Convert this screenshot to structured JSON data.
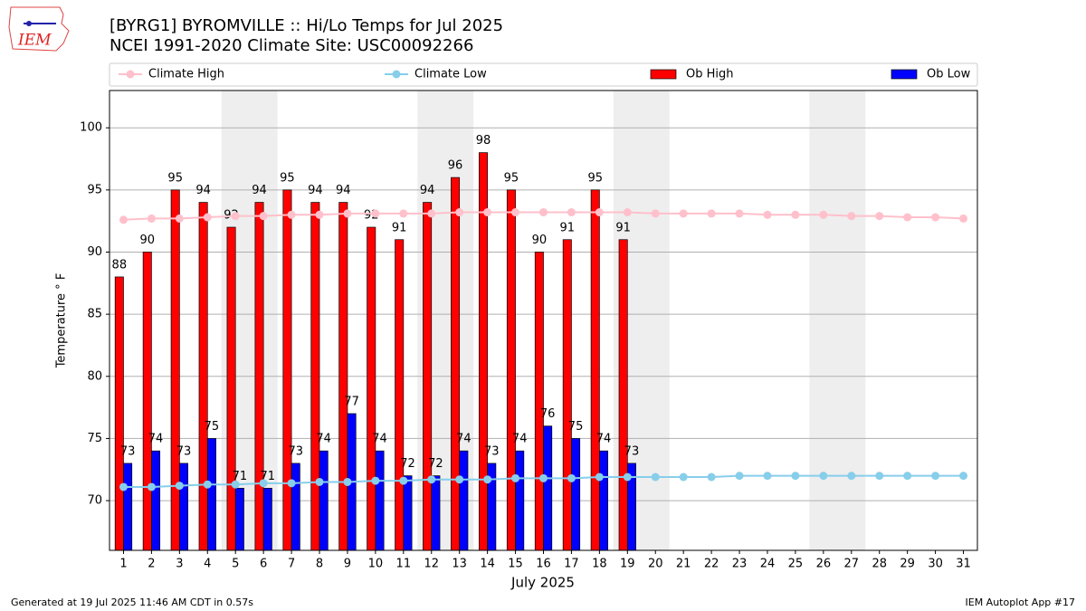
{
  "chart_data": {
    "type": "bar_line",
    "title": "[BYRG1] BYROMVILLE :: Hi/Lo Temps for Jul 2025",
    "subtitle": "NCEI 1991-2020 Climate Site: USC00092266",
    "ylabel": "Temperature ° F",
    "xlabel": "July 2025",
    "footer_left": "Generated at 19 Jul 2025 11:46 AM CDT in 0.57s",
    "footer_right": "IEM Autoplot App #17",
    "logo_text": "IEM",
    "x": [
      1,
      2,
      3,
      4,
      5,
      6,
      7,
      8,
      9,
      10,
      11,
      12,
      13,
      14,
      15,
      16,
      17,
      18,
      19,
      20,
      21,
      22,
      23,
      24,
      25,
      26,
      27,
      28,
      29,
      30,
      31
    ],
    "xlim": [
      0.5,
      31.5
    ],
    "xticks": [
      1,
      2,
      3,
      4,
      5,
      6,
      7,
      8,
      9,
      10,
      11,
      12,
      13,
      14,
      15,
      16,
      17,
      18,
      19,
      20,
      21,
      22,
      23,
      24,
      25,
      26,
      27,
      28,
      29,
      30,
      31
    ],
    "ylim": [
      66,
      103
    ],
    "yticks": [
      70,
      75,
      80,
      85,
      90,
      95,
      100
    ],
    "grid": true,
    "legend": "top",
    "shaded_ranges": [
      [
        4.5,
        6.5
      ],
      [
        11.5,
        13.5
      ],
      [
        18.5,
        20.5
      ],
      [
        25.5,
        27.5
      ]
    ],
    "shade_color": "#eeeeee",
    "series": [
      {
        "name": "Climate High",
        "kind": "line",
        "color": "#ffc0cb",
        "values": [
          92.6,
          92.7,
          92.7,
          92.8,
          92.9,
          92.9,
          93.0,
          93.0,
          93.1,
          93.1,
          93.1,
          93.1,
          93.2,
          93.2,
          93.2,
          93.2,
          93.2,
          93.2,
          93.2,
          93.1,
          93.1,
          93.1,
          93.1,
          93.0,
          93.0,
          93.0,
          92.9,
          92.9,
          92.8,
          92.8,
          92.7
        ]
      },
      {
        "name": "Climate Low",
        "kind": "line",
        "color": "#87ceeb",
        "values": [
          71.1,
          71.1,
          71.2,
          71.3,
          71.3,
          71.4,
          71.4,
          71.5,
          71.5,
          71.6,
          71.6,
          71.7,
          71.7,
          71.7,
          71.8,
          71.8,
          71.8,
          71.9,
          71.9,
          71.9,
          71.9,
          71.9,
          72.0,
          72.0,
          72.0,
          72.0,
          72.0,
          72.0,
          72.0,
          72.0,
          72.0
        ]
      },
      {
        "name": "Ob High",
        "kind": "bar",
        "color": "#ff0000",
        "values": [
          88,
          90,
          95,
          94,
          92,
          94,
          95,
          94,
          94,
          92,
          91,
          94,
          96,
          98,
          95,
          90,
          91,
          95,
          91,
          null,
          null,
          null,
          null,
          null,
          null,
          null,
          null,
          null,
          null,
          null,
          null
        ]
      },
      {
        "name": "Ob Low",
        "kind": "bar",
        "color": "#0000ff",
        "values": [
          73,
          74,
          73,
          75,
          71,
          71,
          73,
          74,
          77,
          74,
          72,
          72,
          74,
          73,
          74,
          76,
          75,
          74,
          73,
          null,
          null,
          null,
          null,
          null,
          null,
          null,
          null,
          null,
          null,
          null,
          null
        ]
      }
    ]
  }
}
